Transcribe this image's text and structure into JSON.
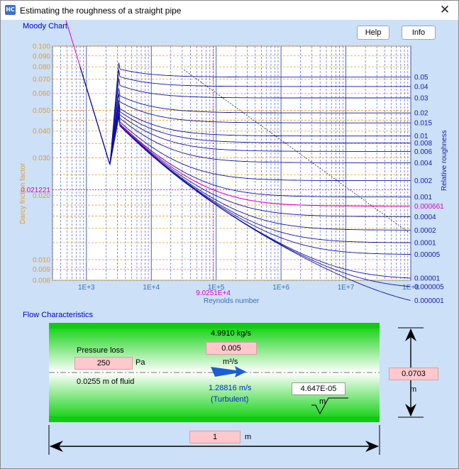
{
  "window": {
    "title": "Estimating the roughness of a straight pipe",
    "app_icon_text": "HC",
    "close_glyph": "✕"
  },
  "moody": {
    "section_label": "Moody Chart",
    "help_label": "Help",
    "info_label": "Info",
    "y_axis_label": "Darcy friction factor",
    "x_axis_label": "Reynolds number",
    "right_axis_label": "Relative roughness",
    "y_ticks": [
      "0.100",
      "0.090",
      "0.080",
      "0.070",
      "0.060",
      "0.050",
      "0.040",
      "0.030",
      "0.020",
      "0.010",
      "0.009",
      "0.008"
    ],
    "x_ticks": [
      "1E+3",
      "1E+4",
      "1E+5",
      "1E+6",
      "1E+7",
      "1E+8"
    ],
    "roughness_labels": [
      "0.05",
      "0.04",
      "0.03",
      "0.02",
      "0.015",
      "0.01",
      "0.008",
      "0.006",
      "0.004",
      "0.002",
      "0.001",
      "0.0004",
      "0.0002",
      "0.0001",
      "0.00005",
      "0.00001",
      "0.000005",
      "0.000001"
    ],
    "marker_friction": "0.021221",
    "marker_reynolds": "9.0251E+4",
    "marker_roughness": "0.000661",
    "colors": {
      "axis": "#e89a2c",
      "curves": "#1010a0",
      "marker": "#e000c0",
      "grid_blue": "#4060c0"
    }
  },
  "flow": {
    "section_label": "Flow Characteristics",
    "mass_flow": "4.9910 kg/s",
    "volume_flow_value": "0.005",
    "volume_flow_unit": "m³/s",
    "pressure_loss_label": "Pressure loss",
    "pressure_loss_value": "250",
    "pressure_loss_unit": "Pa",
    "head_loss": "0.0255 m of fluid",
    "velocity": "1.28816 m/s",
    "regime": "(Turbulent)",
    "roughness_value": "4.647E-05",
    "roughness_unit": "m",
    "diameter_value": "0.0703",
    "diameter_unit": "m",
    "length_value": "1",
    "length_unit": "m"
  }
}
